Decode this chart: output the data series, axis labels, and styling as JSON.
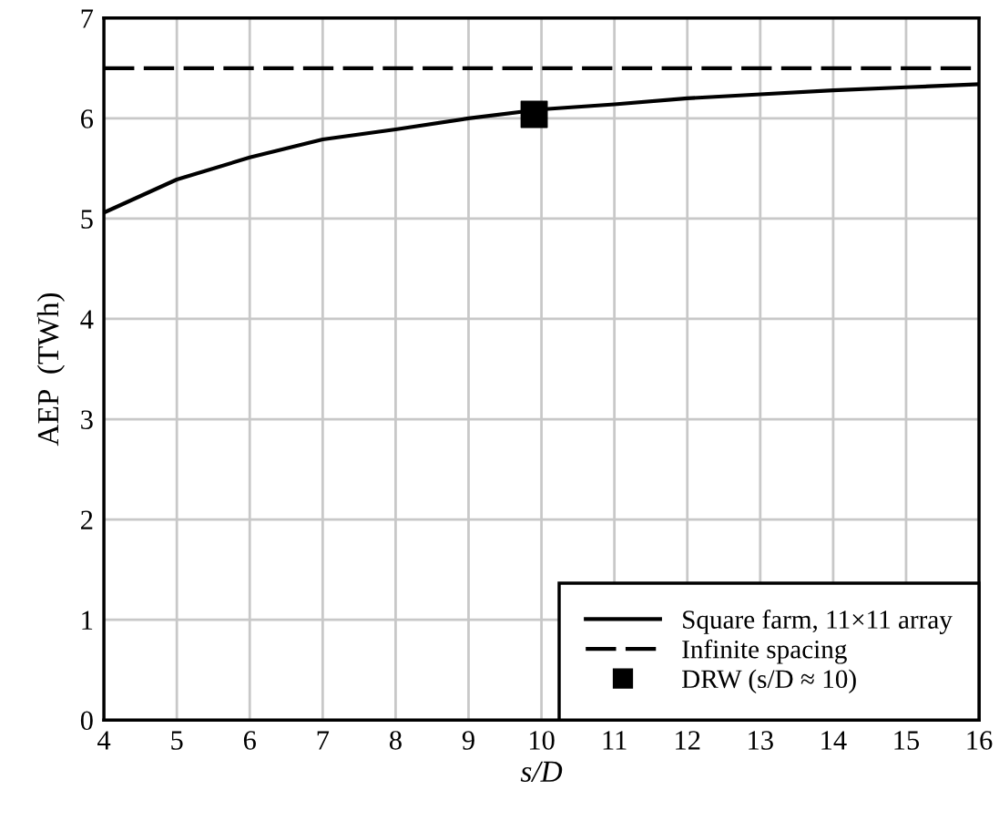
{
  "chart_data": {
    "type": "line",
    "xlabel": "s/D",
    "ylabel": "AEP  (TWh)",
    "xlim": [
      4,
      16
    ],
    "xticks": [
      4,
      5,
      6,
      7,
      8,
      9,
      10,
      11,
      12,
      13,
      14,
      15,
      16
    ],
    "ylim": [
      0,
      7
    ],
    "yticks": [
      0,
      1,
      2,
      3,
      4,
      5,
      6,
      7
    ],
    "grid": true,
    "legend": "bottom right",
    "series": [
      {
        "name": "Square farm, 11×11 array",
        "color": "#000000",
        "marker": "none",
        "line_style": "solid",
        "x": [
          4,
          5,
          6,
          7,
          8,
          9,
          10,
          11,
          12,
          13,
          14,
          15,
          16
        ],
        "values": [
          5.06,
          5.39,
          5.61,
          5.79,
          5.89,
          6.0,
          6.09,
          6.14,
          6.2,
          6.24,
          6.28,
          6.31,
          6.34
        ]
      },
      {
        "name": "DRW (s/D ≈ 10)",
        "type": "scatter",
        "color": "#000000",
        "marker": "square",
        "x": [
          9.9
        ],
        "values": [
          6.04
        ]
      }
    ],
    "ref_lines": [
      {
        "axis": "y",
        "value": 6.5,
        "label": "Infinite spacing",
        "color": "#000000",
        "line_style": "dashed"
      }
    ]
  }
}
